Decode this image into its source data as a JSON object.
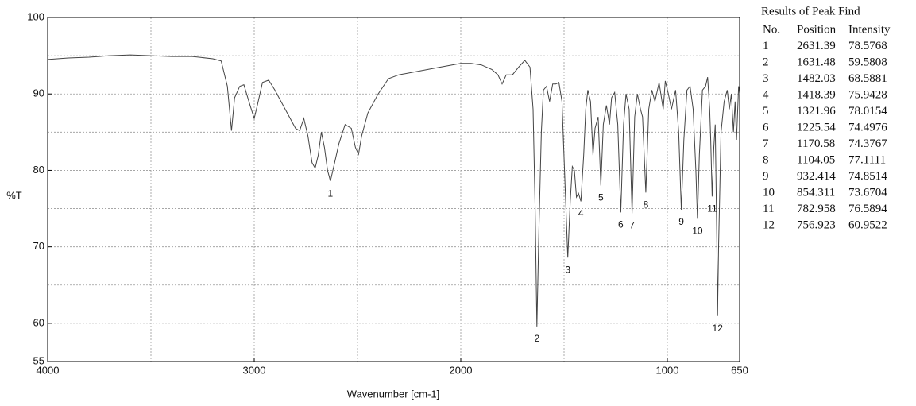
{
  "chart_data": {
    "type": "line",
    "x_label": "Wavenumber [cm-1]",
    "y_label": "%T",
    "color": "#444444",
    "xlim": [
      4000,
      650
    ],
    "ylim": [
      55,
      100
    ],
    "xticks": [
      4000,
      3000,
      2000,
      1000,
      650
    ],
    "yticks": [
      55,
      60,
      70,
      80,
      90,
      100
    ],
    "minor_xticks": [
      3500,
      2500,
      1500
    ],
    "minor_yticks": [
      65,
      75,
      85,
      95
    ],
    "grid": true,
    "x": [
      4000,
      3900,
      3800,
      3700,
      3600,
      3500,
      3400,
      3300,
      3200,
      3160,
      3130,
      3110,
      3095,
      3070,
      3050,
      3020,
      3000,
      2985,
      2960,
      2930,
      2900,
      2850,
      2800,
      2780,
      2760,
      2740,
      2720,
      2705,
      2690,
      2675,
      2660,
      2645,
      2631,
      2615,
      2590,
      2560,
      2530,
      2510,
      2495,
      2480,
      2450,
      2400,
      2350,
      2300,
      2200,
      2100,
      2000,
      1950,
      1900,
      1850,
      1820,
      1800,
      1780,
      1750,
      1720,
      1690,
      1665,
      1650,
      1640,
      1631.48,
      1622,
      1610,
      1600,
      1585,
      1570,
      1555,
      1540,
      1525,
      1510,
      1495,
      1482.03,
      1470,
      1460,
      1450,
      1440,
      1430,
      1418.39,
      1405,
      1395,
      1385,
      1372,
      1360,
      1350,
      1335,
      1321.96,
      1310,
      1295,
      1280,
      1270,
      1255,
      1240,
      1225.54,
      1212,
      1200,
      1185,
      1170.58,
      1158,
      1145,
      1130,
      1120,
      1104.05,
      1090,
      1075,
      1060,
      1040,
      1020,
      1010,
      995,
      980,
      960,
      945,
      932.414,
      920,
      905,
      890,
      875,
      862,
      854.311,
      845,
      830,
      815,
      805,
      795,
      790,
      782.958,
      775,
      768,
      760,
      756.923,
      752,
      740,
      725,
      710,
      700,
      690,
      680,
      672,
      665,
      655,
      650
    ],
    "y": [
      94.5,
      94.7,
      94.8,
      95.0,
      95.1,
      95.0,
      94.9,
      94.9,
      94.6,
      94.3,
      91,
      85.2,
      89.5,
      91,
      91.2,
      88.5,
      86.8,
      88.5,
      91.5,
      91.8,
      90.5,
      88,
      85.5,
      85.2,
      86.8,
      84.5,
      81,
      80.3,
      82,
      85,
      83,
      80,
      78.6,
      80.5,
      83.5,
      86,
      85.5,
      83,
      82.1,
      84.5,
      87.5,
      90,
      92,
      92.5,
      93,
      93.5,
      94,
      94,
      93.8,
      93.2,
      92.5,
      91.3,
      92.5,
      92.5,
      93.5,
      94.4,
      93.5,
      88,
      75,
      59.58,
      72,
      85,
      90.5,
      91,
      89,
      91.3,
      91.3,
      91.5,
      89,
      78,
      68.59,
      76,
      80.5,
      80,
      76.5,
      77,
      75.94,
      82,
      88,
      90.5,
      89,
      82,
      85.5,
      87,
      78.02,
      86,
      88.5,
      86,
      89.5,
      90.2,
      86,
      74.5,
      86,
      90,
      88,
      74.38,
      87,
      90,
      88,
      87,
      77.11,
      88,
      90.5,
      89,
      91.5,
      88,
      91.7,
      90,
      88,
      90.5,
      85,
      74.85,
      84,
      90.5,
      91,
      88,
      80,
      73.67,
      82,
      90.5,
      91,
      92.2,
      88,
      84,
      76.59,
      83,
      86,
      70,
      60.95,
      70,
      85,
      89,
      90.5,
      88,
      90,
      85,
      89,
      84,
      91,
      90
    ],
    "peak_table": {
      "title": "Results of Peak Find",
      "columns": [
        "No.",
        "Position",
        "Intensity"
      ],
      "rows": [
        [
          1,
          2631.39,
          78.5768
        ],
        [
          2,
          1631.48,
          59.5808
        ],
        [
          3,
          1482.03,
          68.5881
        ],
        [
          4,
          1418.39,
          75.9428
        ],
        [
          5,
          1321.96,
          78.0154
        ],
        [
          6,
          1225.54,
          74.4976
        ],
        [
          7,
          1170.58,
          74.3767
        ],
        [
          8,
          1104.05,
          77.1111
        ],
        [
          9,
          932.414,
          74.8514
        ],
        [
          10,
          854.311,
          73.6704
        ],
        [
          11,
          782.958,
          76.5894
        ],
        [
          12,
          756.923,
          60.9522
        ]
      ]
    }
  }
}
